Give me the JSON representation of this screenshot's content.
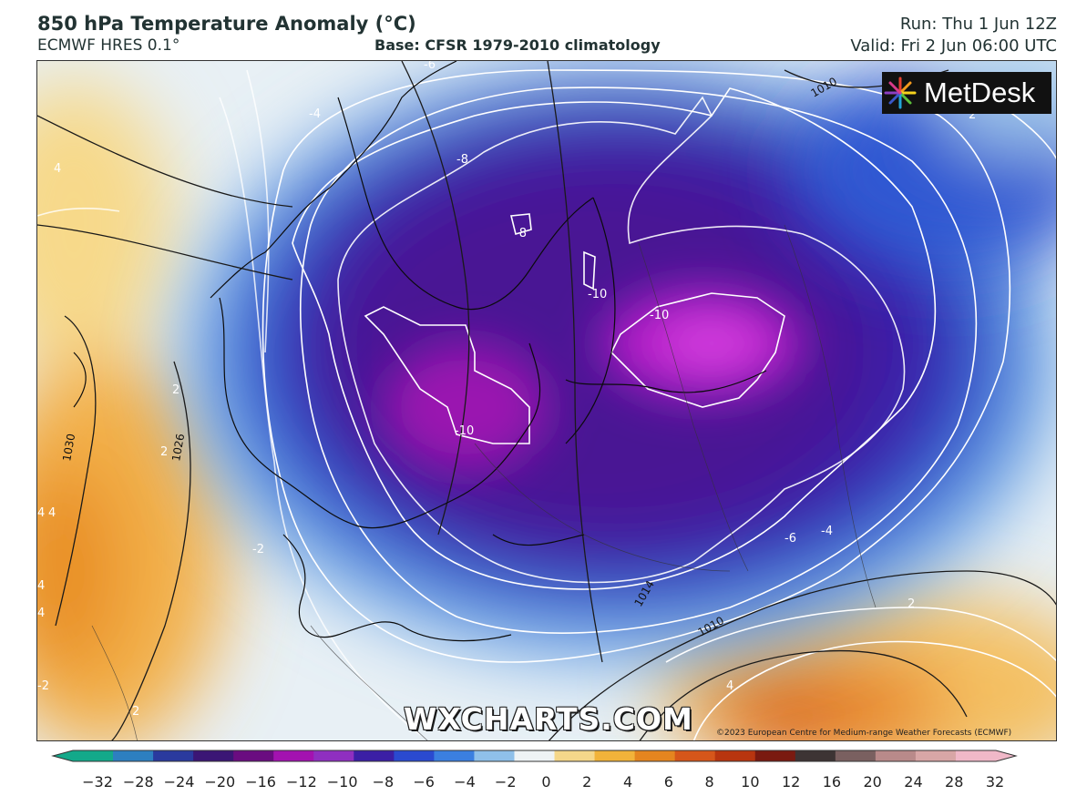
{
  "header": {
    "title": "850 hPa Temperature Anomaly (°C)",
    "model": "ECMWF HRES 0.1°",
    "base": "Base: CFSR 1979-2010 climatology",
    "run": "Run: Thu 1 Jun 12Z",
    "valid": "Valid: Fri 2 Jun 06:00 UTC"
  },
  "logo": {
    "text": "MetDesk"
  },
  "watermark": "WXCHARTS.COM",
  "copyright": "©2023 European Centre for Medium-range Weather Forecasts (ECMWF)",
  "colorbar": {
    "labels": [
      "−32",
      "−28",
      "−24",
      "−20",
      "−16",
      "−12",
      "−10",
      "−8",
      "−6",
      "−4",
      "−2",
      "0",
      "2",
      "4",
      "6",
      "8",
      "10",
      "12",
      "16",
      "20",
      "24",
      "28",
      "32"
    ],
    "colors": [
      "#13a98a",
      "#2d7fc0",
      "#2a3a9e",
      "#3b1675",
      "#6a0c80",
      "#a312b0",
      "#8f2fc0",
      "#3b1fa5",
      "#2a4ad0",
      "#3b7fe0",
      "#8fc0ea",
      "#eef3f5",
      "#f5d78a",
      "#f2b33a",
      "#e5851f",
      "#d6561a",
      "#b8350f",
      "#7a1a10",
      "#3d3434",
      "#7a6060",
      "#b98a8a",
      "#d8a6a6",
      "#f0b8c8"
    ]
  },
  "map": {
    "contour_labels": {
      "temperature_anomaly": [
        "-6",
        "-4",
        "4",
        "4",
        "-8",
        "-8",
        "2",
        "-10",
        "-10",
        "-10",
        "2",
        "-2",
        "2",
        "4",
        "-6",
        "-4",
        "2",
        "2",
        "4",
        "-2",
        "4",
        "4",
        "4"
      ],
      "pressure_hPa": [
        "1010",
        "1030",
        "1026",
        "1014",
        "1010"
      ]
    }
  },
  "colors": {
    "title": "#223333",
    "map_border": "#333333"
  }
}
